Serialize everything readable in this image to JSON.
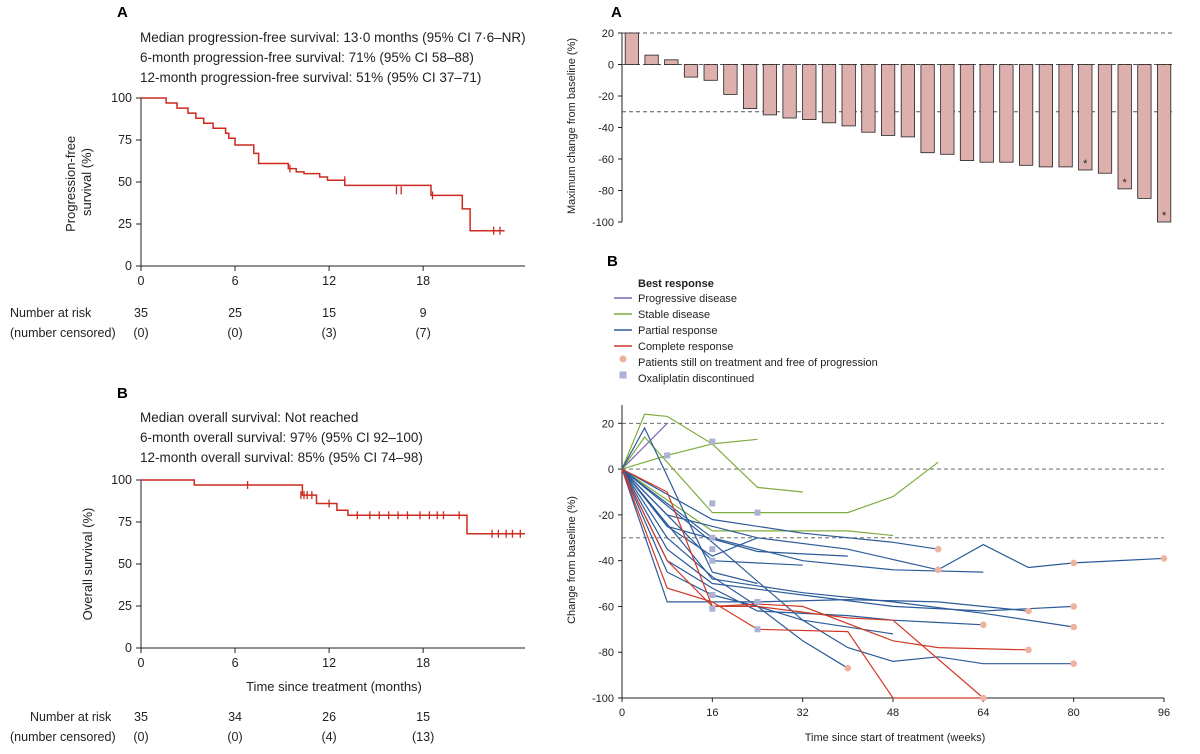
{
  "chart_data": [
    {
      "id": "pfs",
      "type": "line",
      "panel_label": "A",
      "stats": [
        "Median progression-free survival: 13·0 months (95% CI 7·6–NR)",
        "6-month progression-free survival: 71% (95% CI 58–88)",
        "12-month progression-free survival: 51% (95% CI 37–71)"
      ],
      "ylabel": [
        "Progression-free",
        "survival (%)"
      ],
      "xlabel": "",
      "xlim": [
        0,
        24.5
      ],
      "ylim": [
        0,
        100
      ],
      "xticks": [
        0,
        6,
        12,
        18
      ],
      "yticks": [
        0,
        25,
        50,
        75,
        100
      ],
      "color": "#cc2a1e",
      "series": [
        {
          "name": "PFS",
          "x": [
            0,
            1.6,
            1.6,
            2.3,
            2.3,
            3.0,
            3.0,
            3.5,
            3.5,
            4.0,
            4.0,
            4.6,
            4.6,
            5.4,
            5.4,
            5.6,
            5.6,
            6.0,
            6.0,
            7.2,
            7.2,
            7.5,
            7.5,
            9.4,
            9.4,
            9.9,
            9.9,
            10.4,
            10.4,
            11.4,
            11.4,
            11.9,
            11.9,
            13.0,
            13.0,
            18.5,
            18.5,
            20.5,
            20.5,
            21.0,
            21.0,
            23.2
          ],
          "y": [
            100,
            100,
            97,
            97,
            94,
            94,
            91,
            91,
            88,
            88,
            85,
            85,
            82,
            82,
            79,
            79,
            76,
            76,
            72,
            72,
            67,
            67,
            61,
            61,
            58,
            58,
            56,
            56,
            55,
            55,
            53,
            53,
            51,
            51,
            48,
            48,
            42,
            42,
            34,
            34,
            21,
            21
          ]
        }
      ],
      "censor_x": [
        9.5,
        13.0,
        16.3,
        16.6,
        18.6,
        22.5,
        22.9
      ],
      "censor_y": [
        58,
        51,
        45,
        45,
        42,
        21,
        21
      ],
      "risk_table": {
        "label_risk": "Number at risk",
        "label_censored": "(number censored)",
        "times": [
          0,
          6,
          12,
          18
        ],
        "at_risk": [
          "35",
          "25",
          "15",
          "9"
        ],
        "censored": [
          "(0)",
          "(0)",
          "(3)",
          "(7)"
        ]
      }
    },
    {
      "id": "os",
      "type": "line",
      "panel_label": "B",
      "stats": [
        "Median overall survival: Not reached",
        "6-month overall survival: 97% (95% CI 92–100)",
        "12-month overall survival: 85% (95% CI 74–98)"
      ],
      "ylabel": [
        "Overall survival (%)"
      ],
      "xlabel": "Time since treatment (months)",
      "xlim": [
        0,
        24.5
      ],
      "ylim": [
        0,
        100
      ],
      "xticks": [
        0,
        6,
        12,
        18
      ],
      "yticks": [
        0,
        25,
        50,
        75,
        100
      ],
      "color": "#cc2a1e",
      "series": [
        {
          "name": "OS",
          "x": [
            0,
            3.4,
            3.4,
            10.3,
            10.3,
            11.2,
            11.2,
            12.5,
            12.5,
            13.2,
            13.2,
            20.8,
            20.8,
            24.5
          ],
          "y": [
            100,
            100,
            97,
            97,
            91,
            91,
            86,
            86,
            82,
            82,
            79,
            79,
            68,
            68
          ]
        }
      ],
      "censor_x": [
        6.8,
        10.2,
        10.4,
        10.6,
        10.9,
        12.0,
        13.8,
        14.6,
        15.2,
        15.8,
        16.4,
        17.0,
        17.8,
        18.4,
        18.9,
        19.3,
        20.3,
        22.4,
        22.8,
        23.3,
        23.7,
        24.2
      ],
      "censor_y": [
        97,
        91,
        91,
        91,
        91,
        86,
        79,
        79,
        79,
        79,
        79,
        79,
        79,
        79,
        79,
        79,
        79,
        68,
        68,
        68,
        68,
        68
      ],
      "risk_table": {
        "label_risk": "Number at risk",
        "label_censored": "(number censored)",
        "times": [
          0,
          6,
          12,
          18
        ],
        "at_risk": [
          "35",
          "34",
          "26",
          "15"
        ],
        "censored": [
          "(0)",
          "(0)",
          "(4)",
          "(13)"
        ]
      }
    },
    {
      "id": "waterfall",
      "type": "bar",
      "panel_label": "A",
      "ylabel": "Maximum change from baseline (%)",
      "ylim": [
        -100,
        20
      ],
      "yticks": [
        20,
        0,
        -20,
        -40,
        -60,
        -80,
        -100
      ],
      "reference_lines": [
        20,
        0,
        -30
      ],
      "color": "#deb0ad",
      "values": [
        20,
        6,
        3,
        -8,
        -10,
        -19,
        -28,
        -32,
        -34,
        -35,
        -37,
        -39,
        -43,
        -45,
        -46,
        -56,
        -57,
        -61,
        -62,
        -62,
        -64,
        -65,
        -65,
        -67,
        -69,
        -79,
        -85,
        -100
      ],
      "starred_indices": [
        23,
        25,
        27
      ],
      "star_label": "*"
    },
    {
      "id": "spider",
      "type": "line",
      "panel_label": "B",
      "legend_title": "Best response",
      "legend": [
        {
          "label": "Progressive disease",
          "color": "#7d63b8",
          "kind": "line"
        },
        {
          "label": "Stable disease",
          "color": "#7fac3e",
          "kind": "line"
        },
        {
          "label": "Partial response",
          "color": "#2b5b9a",
          "kind": "line"
        },
        {
          "label": "Complete response",
          "color": "#cf3a28",
          "kind": "line"
        },
        {
          "label": "Patients still on treatment and free of progression",
          "color": "#efb29e",
          "kind": "circle"
        },
        {
          "label": "Oxaliplatin discontinued",
          "color": "#aab2d6",
          "kind": "square"
        }
      ],
      "ylabel": "Change from baseline (%)",
      "xlabel": "Time since start of treatment (weeks)",
      "xlim": [
        0,
        96
      ],
      "ylim": [
        -100,
        28
      ],
      "xticks": [
        0,
        16,
        32,
        48,
        64,
        80,
        96
      ],
      "yticks": [
        20,
        0,
        -20,
        -40,
        -60,
        -80,
        -100
      ],
      "reference_lines": [
        20,
        0,
        -30
      ],
      "series": [
        {
          "name": "PD-1",
          "group": "pd",
          "x": [
            0,
            8
          ],
          "y": [
            0,
            20
          ]
        },
        {
          "name": "SD-1",
          "group": "sd",
          "x": [
            0,
            4,
            8,
            16,
            24
          ],
          "y": [
            0,
            24,
            23,
            11,
            13
          ]
        },
        {
          "name": "SD-2",
          "group": "sd",
          "x": [
            0,
            8,
            16,
            24,
            32
          ],
          "y": [
            0,
            6,
            11,
            -8,
            -10
          ]
        },
        {
          "name": "SD-3",
          "group": "sd",
          "x": [
            0,
            4,
            16,
            24,
            40,
            48,
            56
          ],
          "y": [
            0,
            14,
            -19,
            -19,
            -19,
            -12,
            3
          ]
        },
        {
          "name": "SD-4",
          "group": "sd",
          "x": [
            0,
            16,
            40,
            48
          ],
          "y": [
            0,
            -27,
            -27,
            -29
          ]
        },
        {
          "name": "PR-1",
          "group": "pr",
          "x": [
            0,
            8,
            16,
            24,
            40,
            56,
            64,
            72,
            80,
            96
          ],
          "y": [
            0,
            -20,
            -25,
            -30,
            -35,
            -44,
            -33,
            -43,
            -41,
            -39
          ]
        },
        {
          "name": "PR-2",
          "group": "pr",
          "x": [
            0,
            16,
            32,
            48,
            56
          ],
          "y": [
            0,
            -22,
            -28,
            -32,
            -35
          ]
        },
        {
          "name": "PR-3",
          "group": "pr",
          "x": [
            0,
            16,
            32,
            48,
            64
          ],
          "y": [
            0,
            -30,
            -40,
            -44,
            -45
          ]
        },
        {
          "name": "PR-4",
          "group": "pr",
          "x": [
            0,
            8,
            16,
            32,
            48,
            64,
            80
          ],
          "y": [
            0,
            -35,
            -50,
            -55,
            -60,
            -62,
            -60
          ]
        },
        {
          "name": "PR-5",
          "group": "pr",
          "x": [
            0,
            8,
            24,
            40,
            56,
            72
          ],
          "y": [
            0,
            -58,
            -58,
            -57,
            -58,
            -62
          ]
        },
        {
          "name": "PR-6",
          "group": "pr",
          "x": [
            0,
            16,
            32,
            48,
            64,
            80
          ],
          "y": [
            0,
            -48,
            -54,
            -58,
            -63,
            -69
          ]
        },
        {
          "name": "PR-7",
          "group": "pr",
          "x": [
            0,
            8,
            16,
            24,
            40,
            48,
            56,
            64
          ],
          "y": [
            0,
            -40,
            -52,
            -62,
            -64,
            -66,
            -67,
            -68
          ]
        },
        {
          "name": "PR-8",
          "group": "pr",
          "x": [
            0,
            8,
            16,
            24,
            32,
            48
          ],
          "y": [
            0,
            -45,
            -55,
            -60,
            -66,
            -72
          ]
        },
        {
          "name": "PR-9",
          "group": "pr",
          "x": [
            0,
            8,
            16,
            24,
            32,
            40
          ],
          "y": [
            0,
            -30,
            -47,
            -60,
            -75,
            -87
          ]
        },
        {
          "name": "PR-10",
          "group": "pr",
          "x": [
            0,
            16,
            32,
            40,
            48,
            56,
            64,
            80
          ],
          "y": [
            0,
            -32,
            -66,
            -78,
            -84,
            -82,
            -85,
            -85
          ]
        },
        {
          "name": "PR-11",
          "group": "pr",
          "x": [
            0,
            4,
            16,
            24
          ],
          "y": [
            0,
            18,
            -45,
            -50
          ]
        },
        {
          "name": "PR-12",
          "group": "pr",
          "x": [
            0,
            8,
            16,
            24
          ],
          "y": [
            0,
            -25,
            -38,
            -30
          ]
        },
        {
          "name": "PR-13",
          "group": "pr",
          "x": [
            0,
            8,
            16,
            32
          ],
          "y": [
            0,
            -20,
            -40,
            -42
          ]
        },
        {
          "name": "PR-14",
          "group": "pr",
          "x": [
            0,
            8,
            24,
            40
          ],
          "y": [
            0,
            -25,
            -36,
            -38
          ]
        },
        {
          "name": "CR-1",
          "group": "cr",
          "x": [
            0,
            8,
            16,
            24,
            40,
            48,
            64
          ],
          "y": [
            0,
            -40,
            -60,
            -60,
            -65,
            -66,
            -100
          ]
        },
        {
          "name": "CR-2",
          "group": "cr",
          "x": [
            0,
            8,
            16,
            24,
            40,
            48,
            64
          ],
          "y": [
            0,
            -52,
            -58,
            -70,
            -71,
            -100,
            -100
          ]
        },
        {
          "name": "CR-3",
          "group": "cr",
          "x": [
            0,
            8,
            16,
            24,
            32,
            48,
            56,
            72
          ],
          "y": [
            0,
            -10,
            -60,
            -59,
            -60,
            -75,
            -78,
            -79
          ]
        }
      ],
      "on_treatment_points": {
        "x": [
          56,
          56,
          72,
          80,
          96,
          80,
          64,
          80,
          72,
          80,
          40,
          64
        ],
        "y": [
          -35,
          -44,
          -62,
          -60,
          -39,
          -41,
          -68,
          -69,
          -79,
          -85,
          -87,
          -100
        ]
      },
      "oxaliplatin_points": {
        "x": [
          8,
          16,
          16,
          16,
          16,
          16,
          24,
          24,
          16,
          24,
          16
        ],
        "y": [
          6,
          12,
          -15,
          -30,
          -35,
          -40,
          -58,
          -70,
          -61,
          -19,
          -55
        ]
      }
    }
  ]
}
